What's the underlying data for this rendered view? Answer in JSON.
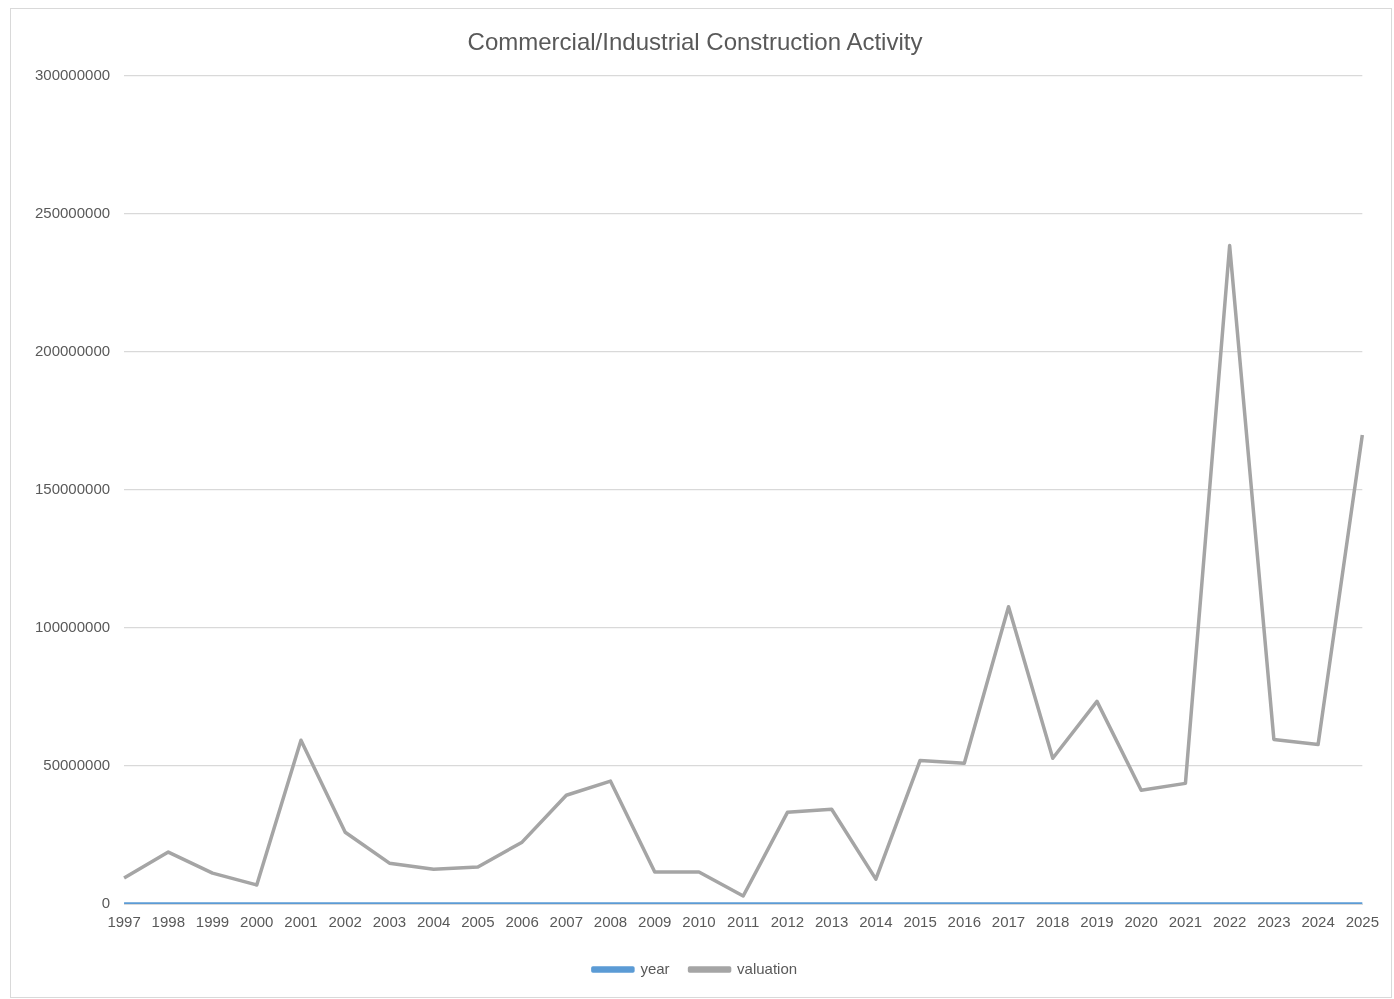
{
  "chart_data": {
    "type": "line",
    "title": "Commercial/Industrial Construction Activity",
    "categories": [
      "1997",
      "1998",
      "1999",
      "2000",
      "2001",
      "2002",
      "2003",
      "2004",
      "2005",
      "2006",
      "2007",
      "2008",
      "2009",
      "2010",
      "2011",
      "2012",
      "2013",
      "2014",
      "2015",
      "2016",
      "2017",
      "2018",
      "2019",
      "2020",
      "2021",
      "2022",
      "2023",
      "2024",
      "2025"
    ],
    "series": [
      {
        "name": "year",
        "color": "#5b9bd5",
        "values": [
          1997,
          1998,
          1999,
          2000,
          2001,
          2002,
          2003,
          2004,
          2005,
          2006,
          2007,
          2008,
          2009,
          2010,
          2011,
          2012,
          2013,
          2014,
          2015,
          2016,
          2017,
          2018,
          2019,
          2020,
          2021,
          2022,
          2023,
          2024,
          2025
        ]
      },
      {
        "name": "valuation",
        "color": "#a5a5a5",
        "values": [
          9400000,
          18800000,
          11200000,
          6900000,
          59300000,
          26000000,
          14800000,
          12600000,
          13400000,
          22400000,
          39400000,
          44500000,
          11600000,
          11600000,
          2900000,
          33200000,
          34300000,
          9000000,
          52000000,
          51000000,
          107700000,
          52800000,
          73400000,
          41200000,
          43700000,
          238500000,
          59600000,
          57800000,
          169900000
        ]
      }
    ],
    "ylim": [
      0,
      300000000
    ],
    "yticks": [
      0,
      50000000,
      100000000,
      150000000,
      200000000,
      250000000,
      300000000
    ],
    "grid": "y",
    "legend": "bottom",
    "marker": "none",
    "line_style": "solid"
  }
}
